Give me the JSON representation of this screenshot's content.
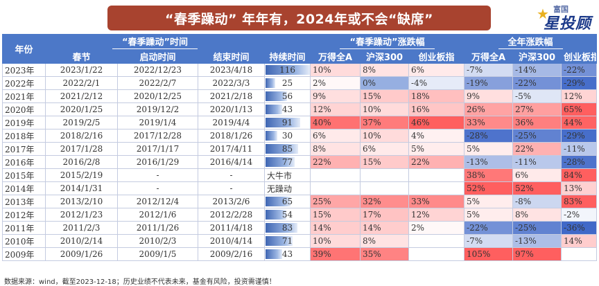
{
  "page_title": "“春季躁动” 年年有，2024年或不会“缺席”",
  "brand": {
    "small": "富国",
    "big": "星投顾"
  },
  "footer": "数据来源：wind，截至2023-12-18；历史业绩不代表未来，基金有风险，投资需谨慎！",
  "colors": {
    "header": "#4c78c8",
    "title_bg": "#a8432f",
    "positive": "#ef5350",
    "negative": "#3f66b3",
    "bar": "#4c78c8"
  },
  "chart_data": {
    "type": "table",
    "title": "“春季躁动” 年年有，2024年或不会“缺席”",
    "header": {
      "year": "年份",
      "group_period": "“春季躁动”时间",
      "group_spring": "“春季躁动”涨跌幅",
      "group_annual": "全年涨跌幅",
      "columns": [
        "春节",
        "启动时间",
        "结束时间",
        "持续时间",
        "万得全A",
        "沪深300",
        "创业板指",
        "万得全A",
        "沪深300",
        "创业板指"
      ]
    },
    "max_duration": 116,
    "rows": [
      {
        "year": "2023年",
        "spring": "2023/1/22",
        "start": "2022/12/23",
        "end": "2023/4/18",
        "duration": 116,
        "duration_text": "116",
        "s_wind": 10,
        "s_hs300": 8,
        "s_cyb": 6,
        "a_wind": -7,
        "a_hs300": -14,
        "a_cyb": -22
      },
      {
        "year": "2022年",
        "spring": "2022/2/1",
        "start": "2022/2/7",
        "end": "2022/3/3",
        "duration": 25,
        "duration_text": "25",
        "s_wind": 2,
        "s_hs300": 0,
        "s_cyb": -4,
        "a_wind": -19,
        "a_hs300": -22,
        "a_cyb": -29
      },
      {
        "year": "2021年",
        "spring": "2021/2/12",
        "start": "2020/12/25",
        "end": "2021/2/18",
        "duration": 56,
        "duration_text": "56",
        "s_wind": 9,
        "s_hs300": 15,
        "s_cyb": 18,
        "a_wind": 9,
        "a_hs300": -5,
        "a_cyb": 12
      },
      {
        "year": "2020年",
        "spring": "2020/1/25",
        "start": "2019/12/2",
        "end": "2020/1/13",
        "duration": 43,
        "duration_text": "43",
        "s_wind": 12,
        "s_hs300": 10,
        "s_cyb": 16,
        "a_wind": 26,
        "a_hs300": 27,
        "a_cyb": 65
      },
      {
        "year": "2019年",
        "spring": "2019/2/5",
        "start": "2019/1/4",
        "end": "2019/4/4",
        "duration": 91,
        "duration_text": "91",
        "s_wind": 40,
        "s_hs300": 37,
        "s_cyb": 46,
        "a_wind": 33,
        "a_hs300": 36,
        "a_cyb": 44
      },
      {
        "year": "2018年",
        "spring": "2018/2/16",
        "start": "2017/12/28",
        "end": "2018/1/26",
        "duration": 30,
        "duration_text": "30",
        "s_wind": 6,
        "s_hs300": 10,
        "s_cyb": 4,
        "a_wind": -28,
        "a_hs300": -25,
        "a_cyb": -29
      },
      {
        "year": "2017年",
        "spring": "2017/1/28",
        "start": "2017/1/17",
        "end": "2017/4/11",
        "duration": 85,
        "duration_text": "85",
        "s_wind": 8,
        "s_hs300": 6,
        "s_cyb": 5,
        "a_wind": 5,
        "a_hs300": 22,
        "a_cyb": -11
      },
      {
        "year": "2016年",
        "spring": "2016/2/8",
        "start": "2016/1/29",
        "end": "2016/4/14",
        "duration": 77,
        "duration_text": "77",
        "s_wind": 22,
        "s_hs300": 15,
        "s_cyb": 22,
        "a_wind": -13,
        "a_hs300": -11,
        "a_cyb": -28
      },
      {
        "year": "2015年",
        "spring": "2015/2/19",
        "start": "-",
        "end": "-",
        "duration": null,
        "duration_text": "",
        "note": "大牛市",
        "s_wind": null,
        "s_hs300": null,
        "s_cyb": null,
        "a_wind": 38,
        "a_hs300": 6,
        "a_cyb": 84
      },
      {
        "year": "2014年",
        "spring": "2014/1/31",
        "start": "-",
        "end": "-",
        "duration": null,
        "duration_text": "",
        "note": "无躁动",
        "s_wind": null,
        "s_hs300": null,
        "s_cyb": null,
        "a_wind": 52,
        "a_hs300": 52,
        "a_cyb": 13
      },
      {
        "year": "2013年",
        "spring": "2013/2/10",
        "start": "2012/12/4",
        "end": "2013/2/6",
        "duration": 65,
        "duration_text": "65",
        "s_wind": 25,
        "s_hs300": 32,
        "s_cyb": 33,
        "a_wind": 5,
        "a_hs300": -8,
        "a_cyb": 83
      },
      {
        "year": "2012年",
        "spring": "2012/1/23",
        "start": "2012/1/6",
        "end": "2012/2/28",
        "duration": 54,
        "duration_text": "54",
        "s_wind": 15,
        "s_hs300": 17,
        "s_cyb": 12,
        "a_wind": 5,
        "a_hs300": 8,
        "a_cyb": -2
      },
      {
        "year": "2011年",
        "spring": "2011/2/3",
        "start": "2011/1/26",
        "end": "2011/4/18",
        "duration": 83,
        "duration_text": "83",
        "s_wind": 14,
        "s_hs300": 14,
        "s_cyb": 2,
        "a_wind": -22,
        "a_hs300": -25,
        "a_cyb": -36
      },
      {
        "year": "2010年",
        "spring": "2010/2/14",
        "start": "2010/2/3",
        "end": "2010/4/14",
        "duration": 71,
        "duration_text": "71",
        "s_wind": 10,
        "s_hs300": 8,
        "s_cyb": null,
        "a_wind": -7,
        "a_hs300": -13,
        "a_cyb": 14
      },
      {
        "year": "2009年",
        "spring": "2009/1/26",
        "start": "2009/1/5",
        "end": "2009/2/16",
        "duration": 43,
        "duration_text": "43",
        "s_wind": 39,
        "s_hs300": 35,
        "s_cyb": null,
        "a_wind": 105,
        "a_hs300": 97,
        "a_cyb": null
      }
    ]
  }
}
